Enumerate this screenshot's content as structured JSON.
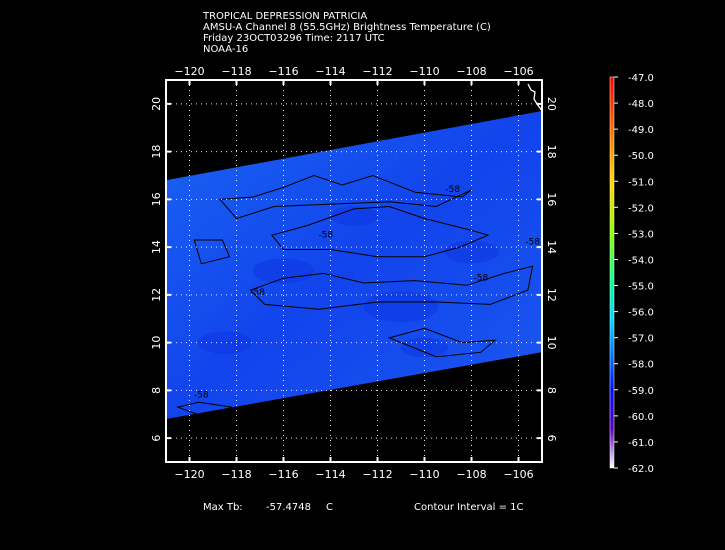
{
  "header": {
    "line1": "TROPICAL DEPRESSION PATRICIA",
    "line2": "AMSU-A Channel 8 (55.5GHz) Brightness Temperature (C)",
    "line3": "Friday 23OCT03296 Time: 2117 UTC",
    "line4": "NOAA-16"
  },
  "footer": {
    "max_label": "Max Tb:",
    "max_value": "-57.4748",
    "max_unit": "C",
    "contour_interval": "Contour Interval = 1C"
  },
  "chart_data": {
    "type": "heatmap",
    "title": "TROPICAL DEPRESSION PATRICIA",
    "x_ticks": [
      -120,
      -118,
      -116,
      -114,
      -112,
      -110,
      -108,
      -106
    ],
    "x_tick_labels": [
      "−120",
      "−118",
      "−116",
      "−114",
      "−112",
      "−110",
      "−108",
      "−106"
    ],
    "y_ticks": [
      6,
      8,
      10,
      12,
      14,
      16,
      18,
      20
    ],
    "y_tick_labels": [
      "6",
      "8",
      "10",
      "12",
      "14",
      "16",
      "18",
      "20"
    ],
    "xlim": [
      -121.0,
      -105.0
    ],
    "ylim": [
      5.0,
      21.0
    ],
    "swath": {
      "west_lon": -121.0,
      "east_lon": -105.0,
      "west_top_lat": 16.8,
      "east_top_lat": 19.7,
      "west_bottom_lat": 6.8,
      "east_bottom_lat": 9.6,
      "approx_value": -58.0
    },
    "contours": [
      {
        "level": -58,
        "label": "-58",
        "lat": 16.3,
        "lon": -108.8
      },
      {
        "level": -58,
        "label": "-58",
        "lat": 14.4,
        "lon": -114.2
      },
      {
        "level": -58,
        "label": "-58",
        "lat": 12.0,
        "lon": -117.1
      },
      {
        "level": -58,
        "label": "-58",
        "lat": 12.6,
        "lon": -107.6
      },
      {
        "level": -58,
        "label": "-58",
        "lat": 14.1,
        "lon": -105.4
      },
      {
        "level": -58,
        "label": "-58",
        "lat": 7.7,
        "lon": -119.5
      }
    ],
    "colorbar": {
      "min": -62.0,
      "max": -47.0,
      "labels": [
        "-47.0",
        "-48.0",
        "-49.0",
        "-50.0",
        "-51.0",
        "-52.0",
        "-53.0",
        "-54.0",
        "-55.0",
        "-56.0",
        "-57.0",
        "-58.0",
        "-59.0",
        "-60.0",
        "-61.0",
        "-62.0"
      ]
    }
  }
}
